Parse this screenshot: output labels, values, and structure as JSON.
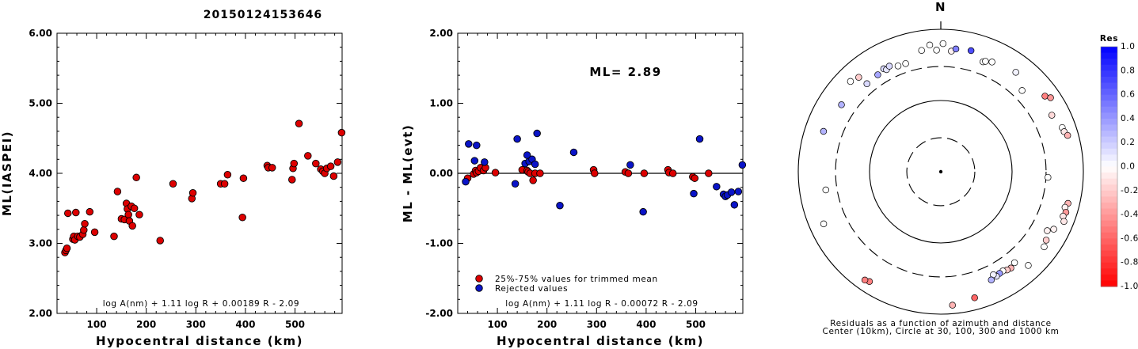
{
  "event_id": "20150124153646",
  "colors": {
    "trimmed": "#dd0000",
    "rejected": "#0a14c8"
  },
  "chart_data": [
    {
      "type": "scatter",
      "ylabel": "ML(IASPEI)",
      "xlabel": "Hypocentral distance (km)",
      "xlim": [
        20,
        595
      ],
      "ylim": [
        2.0,
        6.0
      ],
      "x_ticks": [
        "100",
        "200",
        "300",
        "400",
        "500"
      ],
      "x_tick_values": [
        100,
        200,
        300,
        400,
        500
      ],
      "y_ticks": [
        "2.00",
        "3.00",
        "4.00",
        "5.00",
        "6.00"
      ],
      "y_tick_values": [
        2,
        3,
        4,
        5,
        6
      ],
      "formula": "log A(nm) + 1.11 log R + 0.00189 R - 2.09",
      "series": [
        {
          "points": [
            [
              36,
              2.87
            ],
            [
              38,
              2.9
            ],
            [
              40,
              2.93
            ],
            [
              42,
              3.43
            ],
            [
              52,
              3.06
            ],
            [
              54,
              3.1
            ],
            [
              56,
              3.05
            ],
            [
              58,
              3.44
            ],
            [
              62,
              3.1
            ],
            [
              66,
              3.09
            ],
            [
              72,
              3.13
            ],
            [
              74,
              3.19
            ],
            [
              76,
              3.28
            ],
            [
              86,
              3.45
            ],
            [
              96,
              3.16
            ],
            [
              135,
              3.1
            ],
            [
              142,
              3.74
            ],
            [
              150,
              3.35
            ],
            [
              156,
              3.34
            ],
            [
              160,
              3.57
            ],
            [
              162,
              3.49
            ],
            [
              164,
              3.41
            ],
            [
              166,
              3.32
            ],
            [
              170,
              3.53
            ],
            [
              172,
              3.25
            ],
            [
              176,
              3.5
            ],
            [
              180,
              3.94
            ],
            [
              186,
              3.41
            ],
            [
              228,
              3.04
            ],
            [
              254,
              3.85
            ],
            [
              292,
              3.64
            ],
            [
              294,
              3.72
            ],
            [
              350,
              3.85
            ],
            [
              358,
              3.85
            ],
            [
              364,
              3.98
            ],
            [
              394,
              3.37
            ],
            [
              396,
              3.93
            ],
            [
              444,
              4.11
            ],
            [
              446,
              4.08
            ],
            [
              454,
              4.08
            ],
            [
              494,
              3.91
            ],
            [
              496,
              4.07
            ],
            [
              498,
              4.14
            ],
            [
              508,
              4.71
            ],
            [
              526,
              4.25
            ],
            [
              542,
              4.14
            ],
            [
              552,
              4.06
            ],
            [
              556,
              4.03
            ],
            [
              560,
              4.0
            ],
            [
              564,
              4.07
            ],
            [
              572,
              4.1
            ],
            [
              578,
              3.96
            ],
            [
              586,
              4.16
            ],
            [
              594,
              4.58
            ]
          ]
        }
      ]
    },
    {
      "type": "scatter",
      "ylabel": "ML - ML(evt)",
      "xlabel": "Hypocentral distance (km)",
      "xlim": [
        20,
        595
      ],
      "ylim": [
        -2.0,
        2.0
      ],
      "x_ticks": [
        "100",
        "200",
        "300",
        "400",
        "500"
      ],
      "x_tick_values": [
        100,
        200,
        300,
        400,
        500
      ],
      "y_ticks": [
        "-2.00",
        "-1.00",
        "0.00",
        "1.00",
        "2.00"
      ],
      "y_tick_values": [
        -2,
        -1,
        0,
        1,
        2
      ],
      "ml_text": "ML= 2.89",
      "legend": [
        "25%-75% values for trimmed mean",
        "Rejected values"
      ],
      "formula": "log A(nm) + 1.11 log R - 0.00072 R - 2.09",
      "series": [
        {
          "legend_index": 0,
          "points": [
            [
              40,
              -0.07
            ],
            [
              52,
              -0.01
            ],
            [
              56,
              0.04
            ],
            [
              58,
              0.01
            ],
            [
              62,
              0.03
            ],
            [
              66,
              0.08
            ],
            [
              72,
              0.04
            ],
            [
              76,
              0.08
            ],
            [
              96,
              0.01
            ],
            [
              150,
              0.05
            ],
            [
              160,
              0.04
            ],
            [
              162,
              0.02
            ],
            [
              166,
              0.0
            ],
            [
              172,
              -0.1
            ],
            [
              176,
              0.0
            ],
            [
              186,
              0.0
            ],
            [
              294,
              0.05
            ],
            [
              296,
              0.0
            ],
            [
              358,
              0.02
            ],
            [
              364,
              0.0
            ],
            [
              396,
              0.0
            ],
            [
              444,
              0.05
            ],
            [
              446,
              0.01
            ],
            [
              454,
              0.0
            ],
            [
              494,
              -0.05
            ],
            [
              498,
              -0.07
            ],
            [
              526,
              0.0
            ]
          ]
        },
        {
          "legend_index": 1,
          "points": [
            [
              36,
              -0.12
            ],
            [
              42,
              0.42
            ],
            [
              54,
              0.18
            ],
            [
              58,
              0.4
            ],
            [
              74,
              0.16
            ],
            [
              136,
              -0.15
            ],
            [
              140,
              0.49
            ],
            [
              156,
              0.14
            ],
            [
              160,
              0.26
            ],
            [
              164,
              0.17
            ],
            [
              170,
              0.2
            ],
            [
              176,
              0.13
            ],
            [
              180,
              0.57
            ],
            [
              226,
              -0.46
            ],
            [
              254,
              0.3
            ],
            [
              368,
              0.12
            ],
            [
              394,
              -0.55
            ],
            [
              496,
              -0.29
            ],
            [
              508,
              0.49
            ],
            [
              542,
              -0.19
            ],
            [
              556,
              -0.3
            ],
            [
              560,
              -0.33
            ],
            [
              564,
              -0.31
            ],
            [
              572,
              -0.27
            ],
            [
              578,
              -0.45
            ],
            [
              586,
              -0.26
            ],
            [
              594,
              0.12
            ]
          ]
        }
      ]
    },
    {
      "type": "scatter",
      "subtype": "polar",
      "north_label": "N",
      "caption": [
        "Residuals as a function of azimuth and distance",
        "Center (10km), Circle at 30, 100, 300 and 1000 km"
      ],
      "rings_km": [
        10,
        30,
        100,
        300,
        1000
      ],
      "colorbar": {
        "title": "Res",
        "range": [
          -1.0,
          1.0
        ],
        "tick_labels": [
          "1.0",
          "0.8",
          "0.6",
          "0.4",
          "0.2",
          "0.0",
          "-0.2",
          "-0.4",
          "-0.6",
          "-0.8",
          "-1.0"
        ],
        "tick_values": [
          1.0,
          0.8,
          0.6,
          0.4,
          0.2,
          0.0,
          -0.2,
          -0.4,
          -0.6,
          -0.8,
          -1.0
        ]
      },
      "points": [
        [
          5,
          500,
          -0.05
        ],
        [
          7,
          545,
          0.5
        ],
        [
          14,
          565,
          0.7
        ],
        [
          21,
          450,
          0.0
        ],
        [
          22,
          470,
          0.0
        ],
        [
          25,
          500,
          0.0
        ],
        [
          37,
          560,
          0.05
        ],
        [
          45,
          410,
          0.0
        ],
        [
          54,
          640,
          -0.5
        ],
        [
          56,
          720,
          -0.4
        ],
        [
          63,
          560,
          -0.15
        ],
        [
          70,
          650,
          0.0
        ],
        [
          72,
          660,
          -0.1
        ],
        [
          74,
          710,
          -0.3
        ],
        [
          93,
          320,
          0.0
        ],
        [
          104,
          690,
          -0.3
        ],
        [
          106,
          650,
          -0.05
        ],
        [
          108,
          700,
          -0.4
        ],
        [
          110,
          670,
          -0.1
        ],
        [
          112,
          730,
          -0.1
        ],
        [
          117,
          600,
          -0.05
        ],
        [
          119,
          510,
          -0.05
        ],
        [
          123,
          580,
          -0.2
        ],
        [
          126,
          620,
          0.0
        ],
        [
          137,
          630,
          0.0
        ],
        [
          141,
          440,
          0.0
        ],
        [
          144,
          470,
          -0.3
        ],
        [
          146,
          460,
          -0.2
        ],
        [
          148,
          440,
          0.0
        ],
        [
          150,
          445,
          0.4
        ],
        [
          152,
          460,
          0.1
        ],
        [
          153,
          420,
          0.05
        ],
        [
          155,
          475,
          0.3
        ],
        [
          165,
          680,
          -0.6
        ],
        [
          175,
          760,
          -0.3
        ],
        [
          213,
          690,
          -0.5
        ],
        [
          215,
          720,
          -0.5
        ],
        [
          246,
          630,
          0.0
        ],
        [
          261,
          430,
          0.0
        ],
        [
          289,
          550,
          0.3
        ],
        [
          304,
          480,
          0.3
        ],
        [
          315,
          620,
          0.0
        ],
        [
          319,
          570,
          -0.2
        ],
        [
          320,
          410,
          0.15
        ],
        [
          327,
          420,
          0.35
        ],
        [
          331,
          450,
          0.15
        ],
        [
          332,
          420,
          0.1
        ],
        [
          334,
          445,
          0.15
        ],
        [
          338,
          400,
          0.0
        ],
        [
          342,
          395,
          0.0
        ],
        [
          351,
          530,
          0.0
        ],
        [
          355,
          610,
          0.0
        ],
        [
          358,
          510,
          0.0
        ],
        [
          361,
          630,
          0.0
        ]
      ]
    }
  ]
}
